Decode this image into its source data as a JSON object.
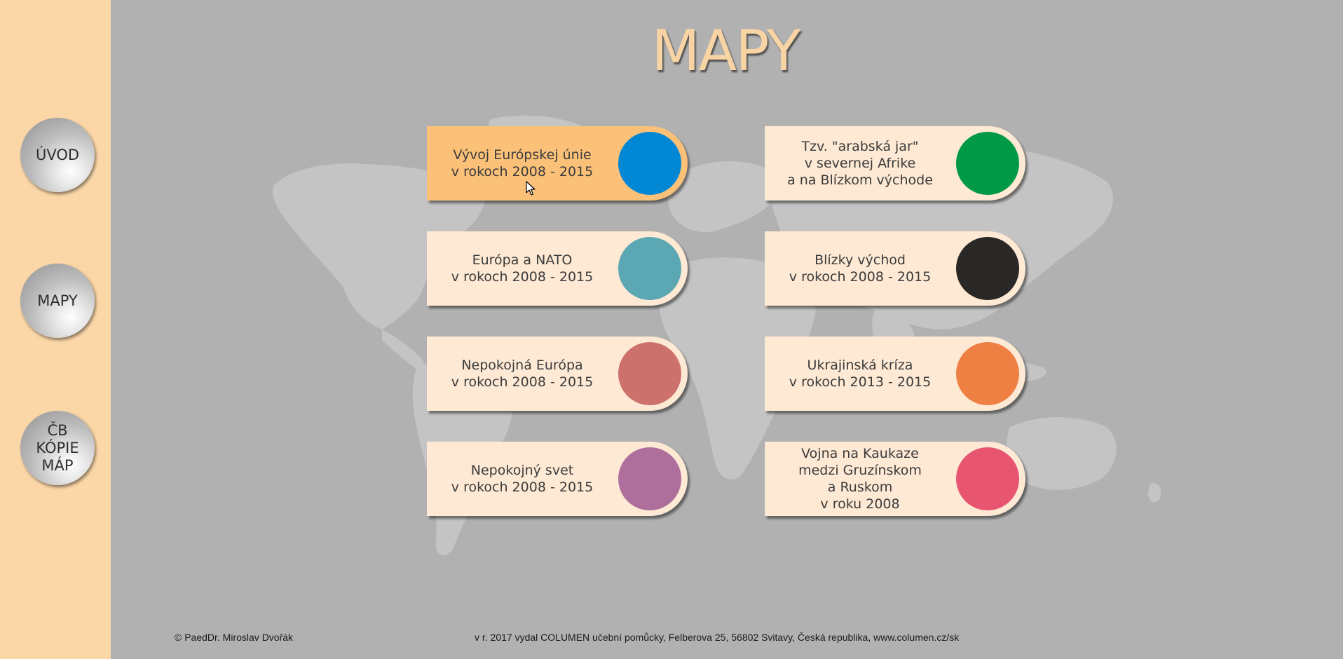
{
  "title": "MAPY",
  "sidebar": {
    "items": [
      {
        "label": "ÚVOD"
      },
      {
        "label": "MAPY"
      },
      {
        "label": "ČB\nKÓPIE\nMÁP"
      }
    ]
  },
  "cards": [
    {
      "label": "Vývoj Európskej únie\nv rokoch 2008 - 2015",
      "color": "#0287d5",
      "active": true
    },
    {
      "label": "Tzv. \"arabská jar\"\nv severnej Afrike\na na Blízkom východe",
      "color": "#009a46",
      "active": false
    },
    {
      "label": "Európa a NATO\nv rokoch 2008 - 2015",
      "color": "#5ba7b3",
      "active": false
    },
    {
      "label": "Blízky východ\nv rokoch 2008 - 2015",
      "color": "#2a2827",
      "active": false
    },
    {
      "label": "Nepokojná Európa\nv rokoch 2008 - 2015",
      "color": "#cd716d",
      "active": false
    },
    {
      "label": "Ukrajinská kríza\nv rokoch 2013 - 2015",
      "color": "#ef8044",
      "active": false
    },
    {
      "label": "Nepokojný svet\nv rokoch 2008 - 2015",
      "color": "#ae6f9c",
      "active": false
    },
    {
      "label": "Vojna na Kaukaze\nmedzi Gruzínskom\na Ruskom\nv roku 2008",
      "color": "#e85571",
      "active": false
    }
  ],
  "footer": {
    "author": "© PaedDr. Miroslav Dvořák",
    "publisher": "v r. 2017 vydal COLUMEN učební pomůcky, Felberova 25, 56802 Svitavy, Česká republika, www.columen.cz/sk"
  }
}
